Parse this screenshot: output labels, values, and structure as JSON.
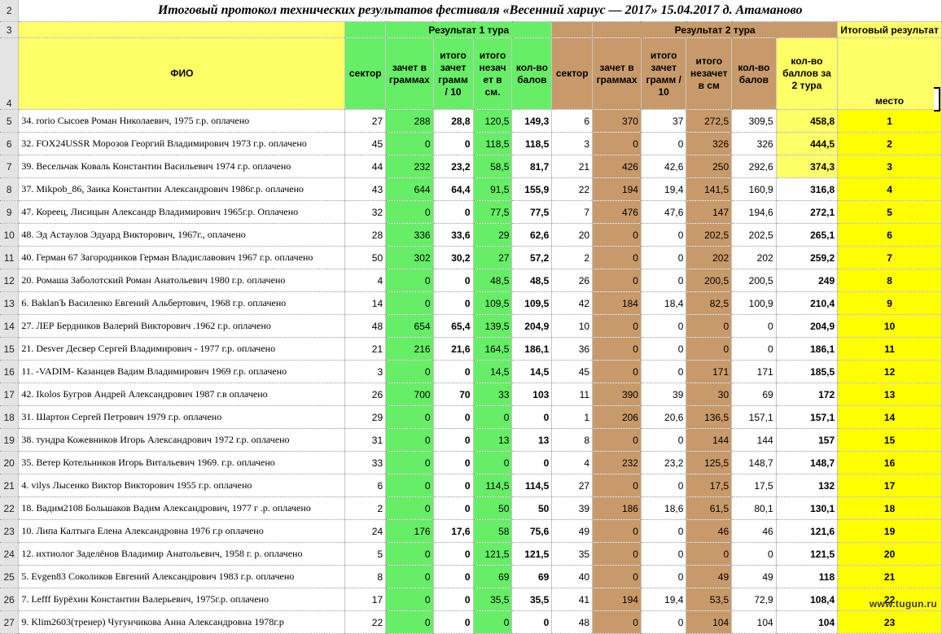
{
  "sheet": {
    "title": "Итоговый протокол технических результатов фестиваля «Весенний хариус — 2017» 15.04.2017 д. Атаманово",
    "rows_labels": {
      "r2": "2",
      "r3": "3",
      "r4": "4"
    },
    "groups": {
      "tour1": "Результат 1 тура",
      "tour2": "Результат 2 тура",
      "final": "Итоговый результат"
    },
    "headers": {
      "fio": "ФИО",
      "t1_sector": "сектор",
      "t1_grams": "зачет в граммах",
      "t1_total": "итого зачет грамм / 10",
      "t1_unscored": "итого незач ет в см.",
      "t1_points": "кол-во балов",
      "t2_sector": "сектор",
      "t2_grams": "зачет в граммах",
      "t2_total": "итого зачет грамм / 10",
      "t2_unscored": "итого незачет в см",
      "t2_points": "кол-во балов",
      "final_points": "кол-во баллов за 2 тура",
      "place": "место"
    },
    "rows": [
      {
        "n": "5",
        "fio": "34. rorio Сысоев Роман Николаевич, 1975 г.р. оплачено",
        "s1": "27",
        "g1": "288",
        "t1": "28,8",
        "u1": "120,5",
        "p1": "149,3",
        "s2": "6",
        "g2": "370",
        "t2": "37",
        "u2": "272,5",
        "p2": "309,5",
        "f": "458,8",
        "pl": "1"
      },
      {
        "n": "6",
        "fio": "32. FOX24USSR Морозов Георгий Владимирович 1973 г.р. оплачено",
        "s1": "45",
        "g1": "0",
        "t1": "0",
        "u1": "118,5",
        "p1": "118,5",
        "s2": "3",
        "g2": "0",
        "t2": "0",
        "u2": "326",
        "p2": "326",
        "f": "444,5",
        "pl": "2"
      },
      {
        "n": "7",
        "fio": "39. Весельчак Коваль Константин Васильевич 1974 г.р. оплачено",
        "s1": "44",
        "g1": "232",
        "t1": "23,2",
        "u1": "58,5",
        "p1": "81,7",
        "s2": "21",
        "g2": "426",
        "t2": "42,6",
        "u2": "250",
        "p2": "292,6",
        "f": "374,3",
        "pl": "3"
      },
      {
        "n": "8",
        "fio": "37. Mikpob_86, Заика Константин Александрович 1986г.р. оплачено",
        "s1": "43",
        "g1": "644",
        "t1": "64,4",
        "u1": "91,5",
        "p1": "155,9",
        "s2": "22",
        "g2": "194",
        "t2": "19,4",
        "u2": "141,5",
        "p2": "160,9",
        "f": "316,8",
        "pl": "4"
      },
      {
        "n": "9",
        "fio": "47. Кореец, Лисицын Александр Владимирович 1965г.р. Оплачено",
        "s1": "32",
        "g1": "0",
        "t1": "0",
        "u1": "77,5",
        "p1": "77,5",
        "s2": "7",
        "g2": "476",
        "t2": "47,6",
        "u2": "147",
        "p2": "194,6",
        "f": "272,1",
        "pl": "5"
      },
      {
        "n": "10",
        "fio": "48. Эд Астаулов Эдуард Викторович, 1967г., оплачено",
        "s1": "28",
        "g1": "336",
        "t1": "33,6",
        "u1": "29",
        "p1": "62,6",
        "s2": "20",
        "g2": "0",
        "t2": "0",
        "u2": "202,5",
        "p2": "202,5",
        "f": "265,1",
        "pl": "6"
      },
      {
        "n": "11",
        "fio": "40. Герман 67 Загородников Герман Владиславович 1967 г.р. оплачено",
        "s1": "50",
        "g1": "302",
        "t1": "30,2",
        "u1": "27",
        "p1": "57,2",
        "s2": "2",
        "g2": "0",
        "t2": "0",
        "u2": "202",
        "p2": "202",
        "f": "259,2",
        "pl": "7"
      },
      {
        "n": "12",
        "fio": "20. Ромаша Заболотский Роман Анатольевич 1980 г.р. оплачено",
        "s1": "4",
        "g1": "0",
        "t1": "0",
        "u1": "48,5",
        "p1": "48,5",
        "s2": "26",
        "g2": "0",
        "t2": "0",
        "u2": "200,5",
        "p2": "200,5",
        "f": "249",
        "pl": "8"
      },
      {
        "n": "13",
        "fio": "6. BaklanЪ Василенко Евгений Альбертович, 1968 г.р. оплачено",
        "s1": "14",
        "g1": "0",
        "t1": "0",
        "u1": "109,5",
        "p1": "109,5",
        "s2": "42",
        "g2": "184",
        "t2": "18,4",
        "u2": "82,5",
        "p2": "100,9",
        "f": "210,4",
        "pl": "9"
      },
      {
        "n": "14",
        "fio": "27. ЛЕР Бердников Валерий Викторович .1962 г.р. оплачено",
        "s1": "48",
        "g1": "654",
        "t1": "65,4",
        "u1": "139,5",
        "p1": "204,9",
        "s2": "10",
        "g2": "0",
        "t2": "0",
        "u2": "0",
        "p2": "0",
        "f": "204,9",
        "pl": "10"
      },
      {
        "n": "15",
        "fio": "21. Desver Десвер Сергей Владимирович - 1977 г.р. оплачено",
        "s1": "21",
        "g1": "216",
        "t1": "21,6",
        "u1": "164,5",
        "p1": "186,1",
        "s2": "36",
        "g2": "0",
        "t2": "0",
        "u2": "0",
        "p2": "0",
        "f": "186,1",
        "pl": "11"
      },
      {
        "n": "16",
        "fio": "11. -VADIM- Казанцев Вадим Владимирович 1969 г.р. оплачено",
        "s1": "3",
        "g1": "0",
        "t1": "0",
        "u1": "14,5",
        "p1": "14,5",
        "s2": "45",
        "g2": "0",
        "t2": "0",
        "u2": "171",
        "p2": "171",
        "f": "185,5",
        "pl": "12"
      },
      {
        "n": "17",
        "fio": "42. Ikolos Бугров Андрей Александрович 1987 г.в оплачено",
        "s1": "26",
        "g1": "700",
        "t1": "70",
        "u1": "33",
        "p1": "103",
        "s2": "11",
        "g2": "390",
        "t2": "39",
        "u2": "30",
        "p2": "69",
        "f": "172",
        "pl": "13"
      },
      {
        "n": "18",
        "fio": "31. Шартон Сергей Петрович 1979 г.р. оплачено",
        "s1": "29",
        "g1": "0",
        "t1": "0",
        "u1": "0",
        "p1": "0",
        "s2": "1",
        "g2": "206",
        "t2": "20,6",
        "u2": "136,5",
        "p2": "157,1",
        "f": "157,1",
        "pl": "14"
      },
      {
        "n": "19",
        "fio": "38. тундра Кожевников Игорь Александрович 1972 г.р. оплачено",
        "s1": "31",
        "g1": "0",
        "t1": "0",
        "u1": "13",
        "p1": "13",
        "s2": "8",
        "g2": "0",
        "t2": "0",
        "u2": "144",
        "p2": "144",
        "f": "157",
        "pl": "15"
      },
      {
        "n": "20",
        "fio": "35. Ветер Котельников Игорь Витальевич 1969. г.р. оплачено",
        "s1": "33",
        "g1": "0",
        "t1": "0",
        "u1": "0",
        "p1": "0",
        "s2": "4",
        "g2": "232",
        "t2": "23,2",
        "u2": "125,5",
        "p2": "148,7",
        "f": "148,7",
        "pl": "16"
      },
      {
        "n": "21",
        "fio": "4. vilys Лысенко Виктор Викторович 1955 г.р. оплачено",
        "s1": "6",
        "g1": "0",
        "t1": "0",
        "u1": "114,5",
        "p1": "114,5",
        "s2": "27",
        "g2": "0",
        "t2": "0",
        "u2": "17,5",
        "p2": "17,5",
        "f": "132",
        "pl": "17"
      },
      {
        "n": "22",
        "fio": "18. Вадим2108 Большаков Вадим Александрович, 1977 г .р. оплачено",
        "s1": "2",
        "g1": "0",
        "t1": "0",
        "u1": "50",
        "p1": "50",
        "s2": "39",
        "g2": "186",
        "t2": "18,6",
        "u2": "61,5",
        "p2": "80,1",
        "f": "130,1",
        "pl": "18"
      },
      {
        "n": "23",
        "fio": "10. Липа Калтыга Елена Александровна 1976 г.р оплачено",
        "s1": "24",
        "g1": "176",
        "t1": "17,6",
        "u1": "58",
        "p1": "75,6",
        "s2": "49",
        "g2": "0",
        "t2": "0",
        "u2": "46",
        "p2": "46",
        "f": "121,6",
        "pl": "19"
      },
      {
        "n": "24",
        "fio": "12. ихтиолог Заделёнов Владимир Анатольевич, 1958 г. р. оплачено",
        "s1": "5",
        "g1": "0",
        "t1": "0",
        "u1": "121,5",
        "p1": "121,5",
        "s2": "35",
        "g2": "0",
        "t2": "0",
        "u2": "0",
        "p2": "0",
        "f": "121,5",
        "pl": "20"
      },
      {
        "n": "25",
        "fio": "5. Evgen83 Соколиков Евгений Александрович 1983 г.р. оплачено",
        "s1": "8",
        "g1": "0",
        "t1": "0",
        "u1": "69",
        "p1": "69",
        "s2": "40",
        "g2": "0",
        "t2": "0",
        "u2": "49",
        "p2": "49",
        "f": "118",
        "pl": "21"
      },
      {
        "n": "26",
        "fio": "7. Lefff Бурёхин Константин Валерьевич, 1975г.р. оплачено",
        "s1": "17",
        "g1": "0",
        "t1": "0",
        "u1": "35,5",
        "p1": "35,5",
        "s2": "41",
        "g2": "194",
        "t2": "19,4",
        "u2": "53,5",
        "p2": "72,9",
        "f": "108,4",
        "pl": "22"
      },
      {
        "n": "27",
        "fio": "9. Klim2603(тренер) Чугунчикова Анна Александровна 1978г.р",
        "s1": "22",
        "g1": "0",
        "t1": "0",
        "u1": "0",
        "p1": "0",
        "s2": "48",
        "g2": "0",
        "t2": "0",
        "u2": "104",
        "p2": "104",
        "f": "104",
        "pl": "23"
      }
    ]
  },
  "watermark": "www.tugun.ru",
  "colors": {
    "green": "#66ee66",
    "brown": "#c89a6a",
    "yellow": "#ffff66",
    "place": "#ffff00",
    "header_gray": "#e4e4e4"
  }
}
